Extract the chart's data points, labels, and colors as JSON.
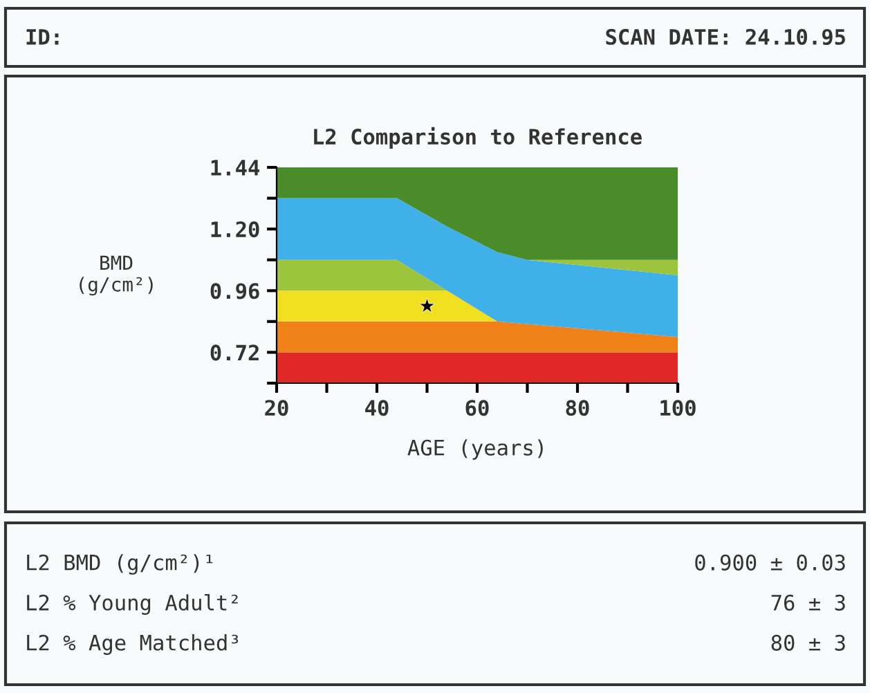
{
  "chart_data": {
    "type": "area",
    "title": "L2 Comparison to Reference",
    "xlabel": "AGE (years)",
    "ylabel": "BMD\n(g/cm²)",
    "x": [
      20,
      44,
      54,
      64,
      70,
      100
    ],
    "series": [
      {
        "color": "#e02828",
        "x": [
          20,
          100
        ],
        "values": [
          0.72,
          0.72
        ]
      },
      {
        "color": "#f08018",
        "values": [
          0.84,
          0.84,
          0.84,
          0.84,
          0.83,
          0.78
        ]
      },
      {
        "color": "#f0e020",
        "x": [
          20,
          44,
          54,
          64
        ],
        "values": [
          0.96,
          0.96,
          0.96,
          0.84
        ]
      },
      {
        "color": "#9cc43c",
        "x": [
          20,
          44,
          54
        ],
        "values": [
          1.08,
          1.08,
          0.96
        ]
      },
      {
        "color": "#40b0e8",
        "values": [
          1.32,
          1.32,
          1.21,
          1.11,
          1.08,
          1.02
        ]
      },
      {
        "color": "#9cc43c",
        "x": [
          70,
          100
        ],
        "values": [
          1.08,
          1.08
        ]
      },
      {
        "color": "#4a8c2a",
        "values": [
          1.44,
          1.44,
          1.44,
          1.44,
          1.44,
          1.44
        ]
      },
      {
        "type": "scatter",
        "color": "#000000",
        "x": [
          50
        ],
        "values": [
          0.9
        ],
        "marker": "star"
      }
    ],
    "xlim": [
      20,
      100
    ],
    "ylim": [
      0.6,
      1.44
    ],
    "xticks": [
      20,
      {
        "value": 30,
        "label": null
      },
      40,
      {
        "value": 50,
        "label": null
      },
      60,
      {
        "value": 70,
        "label": null
      },
      80,
      {
        "value": 90,
        "label": null
      },
      100
    ],
    "yticks": [
      {
        "value": 0.6,
        "label": null
      },
      0.72,
      {
        "value": 0.84,
        "label": null
      },
      0.96,
      {
        "value": 1.08,
        "label": null
      },
      {
        "value": 1.2,
        "label": "1.20"
      },
      {
        "value": 1.32,
        "label": null
      },
      1.44
    ],
    "grid": false,
    "legend": false,
    "annotations": [
      "ID:",
      "SCAN DATE: 24.10.95",
      "L2 BMD (g/cm²)¹",
      "0.900 ± 0.03",
      "L2 % Young Adult²",
      "76 ± 3",
      "L2 % Age Matched³",
      "80 ± 3"
    ]
  }
}
